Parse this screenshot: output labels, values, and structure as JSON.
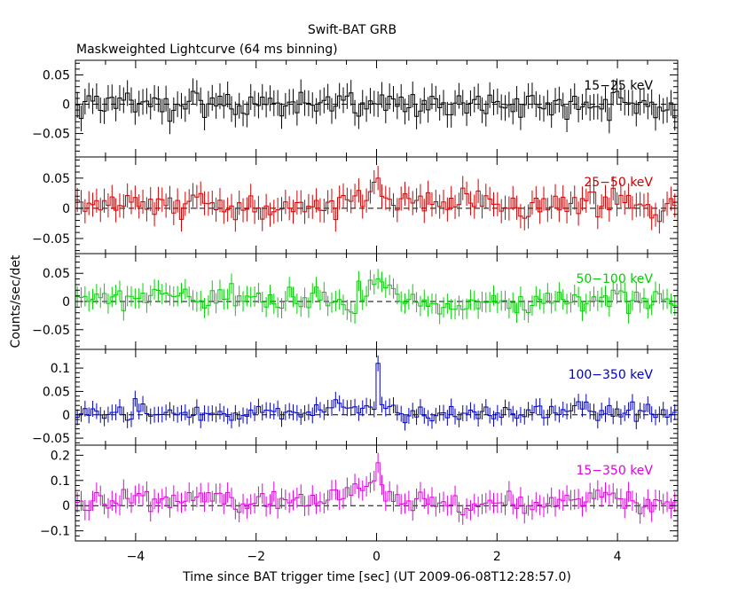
{
  "title": "Swift-BAT GRB",
  "subtitle": "Maskweighted Lightcurve (64 ms binning)",
  "xlabel": "Time since BAT trigger time [sec] (UT 2009-06-08T12:28:57.0)",
  "ylabel": "Counts/sec/det",
  "chart_data": {
    "type": "line",
    "xlim": [
      -5,
      5
    ],
    "x_ticks": [
      -4,
      -2,
      0,
      2,
      4
    ],
    "x_tick_labels": [
      "−4",
      "−2",
      "0",
      "2",
      "4"
    ],
    "bin_width_s": 0.064,
    "panels": [
      {
        "name": "15-25 keV",
        "label": "15−25 keV",
        "color": "#000000",
        "ylim": [
          -0.09,
          0.075
        ],
        "y_ticks": [
          0.05,
          0,
          -0.05
        ],
        "y_tick_labels": [
          "0.05",
          "0",
          "−0.05"
        ],
        "peak_at_zero": 0.0,
        "noise": 0.022,
        "error": 0.022,
        "profile": [
          [
            -5.0,
            0.0
          ],
          [
            5.0,
            0.0
          ]
        ]
      },
      {
        "name": "25-50 keV",
        "label": "25−50 keV",
        "color": "#d00000",
        "ylim": [
          -0.075,
          0.085
        ],
        "y_ticks": [
          0.05,
          0,
          -0.05
        ],
        "y_tick_labels": [
          "0.05",
          "0",
          "−0.05"
        ],
        "peak_at_zero": 0.05,
        "noise": 0.02,
        "error": 0.02,
        "profile": [
          [
            -5.0,
            0.0
          ],
          [
            -4.0,
            0.01
          ],
          [
            -3.0,
            0.01
          ],
          [
            -2.0,
            0.0
          ],
          [
            -0.5,
            0.01
          ],
          [
            0.0,
            0.03
          ],
          [
            0.5,
            0.0
          ],
          [
            1.0,
            0.01
          ],
          [
            2.0,
            0.0
          ],
          [
            3.0,
            0.01
          ],
          [
            4.0,
            0.01
          ],
          [
            5.0,
            0.0
          ]
        ]
      },
      {
        "name": "50-100 keV",
        "label": "50−100 keV",
        "color": "#00d000",
        "ylim": [
          -0.085,
          0.085
        ],
        "y_ticks": [
          0.05,
          0,
          -0.05
        ],
        "y_tick_labels": [
          "0.05",
          "0",
          "−0.05"
        ],
        "peak_at_zero": 0.04,
        "noise": 0.018,
        "error": 0.018,
        "profile": [
          [
            -5.0,
            0.0
          ],
          [
            -3.5,
            0.01
          ],
          [
            -2.0,
            0.0
          ],
          [
            -1.0,
            0.01
          ],
          [
            -0.5,
            -0.01
          ],
          [
            0.0,
            0.03
          ],
          [
            0.5,
            0.0
          ],
          [
            1.5,
            -0.01
          ],
          [
            2.0,
            0.0
          ],
          [
            3.0,
            0.0
          ],
          [
            4.0,
            0.01
          ],
          [
            5.0,
            0.0
          ]
        ]
      },
      {
        "name": "100-350 keV",
        "label": "100−350 keV",
        "color": "#0000c0",
        "ylim": [
          -0.065,
          0.14
        ],
        "y_ticks": [
          0.1,
          0.05,
          0,
          -0.05
        ],
        "y_tick_labels": [
          "0.1",
          "0.05",
          "0",
          "−0.05"
        ],
        "peak_at_zero": 0.11,
        "noise": 0.017,
        "error": 0.017,
        "profile": [
          [
            -5.0,
            0.0
          ],
          [
            -4.0,
            0.01
          ],
          [
            -2.0,
            0.0
          ],
          [
            0.0,
            0.02
          ],
          [
            0.5,
            0.0
          ],
          [
            2.0,
            0.0
          ],
          [
            3.5,
            0.01
          ],
          [
            5.0,
            0.0
          ]
        ]
      },
      {
        "name": "15-350 keV",
        "label": "15−350 keV",
        "color": "#e000e0",
        "ylim": [
          -0.14,
          0.24
        ],
        "y_ticks": [
          0.2,
          0.1,
          0,
          -0.1
        ],
        "y_tick_labels": [
          "0.2",
          "0.1",
          "0",
          "−0.1"
        ],
        "peak_at_zero": 0.17,
        "noise": 0.04,
        "error": 0.04,
        "profile": [
          [
            -5.0,
            0.0
          ],
          [
            -4.0,
            0.03
          ],
          [
            -3.0,
            0.02
          ],
          [
            -2.0,
            0.0
          ],
          [
            -1.0,
            0.02
          ],
          [
            0.0,
            0.07
          ],
          [
            0.5,
            0.01
          ],
          [
            1.5,
            0.0
          ],
          [
            3.0,
            0.01
          ],
          [
            3.6,
            0.05
          ],
          [
            4.5,
            0.0
          ],
          [
            5.0,
            0.0
          ]
        ]
      }
    ]
  }
}
